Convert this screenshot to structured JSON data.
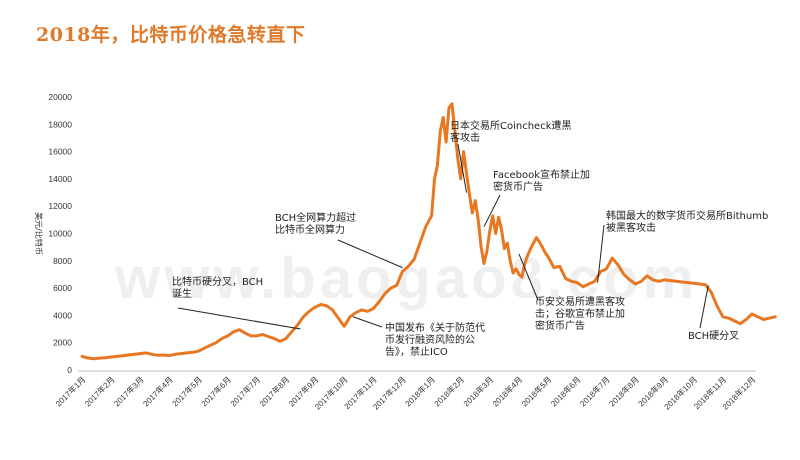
{
  "page": {
    "title": "2018年，比特币价格急转直下"
  },
  "chart_data": {
    "type": "line",
    "title": "2018年，比特币价格急转直下",
    "ylabel": "美元/比特币",
    "xlabel": "",
    "ylim": [
      0,
      20000
    ],
    "yticks": [
      0,
      2000,
      4000,
      6000,
      8000,
      10000,
      12000,
      14000,
      16000,
      18000,
      20000
    ],
    "categories": [
      "2017年1月",
      "2017年2月",
      "2017年3月",
      "2017年4月",
      "2017年5月",
      "2017年6月",
      "2017年7月",
      "2017年8月",
      "2017年9月",
      "2017年10月",
      "2017年11月",
      "2017年12月",
      "2018年1月",
      "2018年2月",
      "2018年3月",
      "2018年4月",
      "2018年5月",
      "2018年6月",
      "2018年7月",
      "2018年8月",
      "2018年9月",
      "2018年10月",
      "2018年11月",
      "2018年12月"
    ],
    "series": [
      {
        "name": "比特币价格",
        "color": "#e87722",
        "points": [
          [
            0.0,
            1000
          ],
          [
            0.2,
            880
          ],
          [
            0.4,
            830
          ],
          [
            0.6,
            870
          ],
          [
            0.8,
            900
          ],
          [
            1.0,
            950
          ],
          [
            1.2,
            1000
          ],
          [
            1.4,
            1050
          ],
          [
            1.6,
            1100
          ],
          [
            1.8,
            1150
          ],
          [
            2.0,
            1200
          ],
          [
            2.2,
            1250
          ],
          [
            2.4,
            1150
          ],
          [
            2.6,
            1080
          ],
          [
            2.8,
            1100
          ],
          [
            3.0,
            1060
          ],
          [
            3.2,
            1150
          ],
          [
            3.4,
            1200
          ],
          [
            3.6,
            1250
          ],
          [
            3.8,
            1300
          ],
          [
            4.0,
            1380
          ],
          [
            4.2,
            1600
          ],
          [
            4.4,
            1800
          ],
          [
            4.6,
            2000
          ],
          [
            4.8,
            2300
          ],
          [
            5.0,
            2500
          ],
          [
            5.2,
            2800
          ],
          [
            5.4,
            2950
          ],
          [
            5.6,
            2700
          ],
          [
            5.8,
            2500
          ],
          [
            6.0,
            2500
          ],
          [
            6.2,
            2600
          ],
          [
            6.4,
            2450
          ],
          [
            6.6,
            2300
          ],
          [
            6.8,
            2100
          ],
          [
            7.0,
            2300
          ],
          [
            7.2,
            2800
          ],
          [
            7.4,
            3300
          ],
          [
            7.6,
            3900
          ],
          [
            7.8,
            4300
          ],
          [
            8.0,
            4600
          ],
          [
            8.2,
            4800
          ],
          [
            8.4,
            4700
          ],
          [
            8.6,
            4400
          ],
          [
            8.8,
            3800
          ],
          [
            9.0,
            3200
          ],
          [
            9.2,
            3900
          ],
          [
            9.4,
            4200
          ],
          [
            9.6,
            4400
          ],
          [
            9.8,
            4300
          ],
          [
            10.0,
            4500
          ],
          [
            10.2,
            5000
          ],
          [
            10.4,
            5600
          ],
          [
            10.6,
            6000
          ],
          [
            10.8,
            6200
          ],
          [
            11.0,
            7200
          ],
          [
            11.2,
            7600
          ],
          [
            11.4,
            8100
          ],
          [
            11.6,
            9300
          ],
          [
            11.8,
            10500
          ],
          [
            12.0,
            11300
          ],
          [
            12.1,
            14000
          ],
          [
            12.2,
            15000
          ],
          [
            12.3,
            17500
          ],
          [
            12.4,
            18500
          ],
          [
            12.5,
            16700
          ],
          [
            12.6,
            19200
          ],
          [
            12.7,
            19500
          ],
          [
            12.8,
            17500
          ],
          [
            12.9,
            15500
          ],
          [
            13.0,
            14000
          ],
          [
            13.1,
            16000
          ],
          [
            13.2,
            14400
          ],
          [
            13.3,
            12900
          ],
          [
            13.4,
            11500
          ],
          [
            13.5,
            12400
          ],
          [
            13.6,
            11000
          ],
          [
            13.7,
            9000
          ],
          [
            13.8,
            7800
          ],
          [
            13.9,
            8700
          ],
          [
            14.0,
            10200
          ],
          [
            14.1,
            11300
          ],
          [
            14.2,
            10000
          ],
          [
            14.3,
            11200
          ],
          [
            14.4,
            10300
          ],
          [
            14.5,
            8900
          ],
          [
            14.6,
            9300
          ],
          [
            14.7,
            8000
          ],
          [
            14.8,
            7100
          ],
          [
            14.9,
            7400
          ],
          [
            15.0,
            7000
          ],
          [
            15.1,
            6800
          ],
          [
            15.2,
            7800
          ],
          [
            15.3,
            8400
          ],
          [
            15.4,
            8900
          ],
          [
            15.5,
            9300
          ],
          [
            15.6,
            9700
          ],
          [
            15.7,
            9400
          ],
          [
            15.8,
            9000
          ],
          [
            15.9,
            8600
          ],
          [
            16.0,
            8300
          ],
          [
            16.1,
            7900
          ],
          [
            16.2,
            7500
          ],
          [
            16.4,
            7600
          ],
          [
            16.6,
            6700
          ],
          [
            16.8,
            6500
          ],
          [
            17.0,
            6400
          ],
          [
            17.2,
            6100
          ],
          [
            17.4,
            6300
          ],
          [
            17.6,
            6500
          ],
          [
            17.8,
            7200
          ],
          [
            18.0,
            7400
          ],
          [
            18.2,
            8200
          ],
          [
            18.4,
            7700
          ],
          [
            18.6,
            7000
          ],
          [
            18.8,
            6600
          ],
          [
            19.0,
            6300
          ],
          [
            19.2,
            6500
          ],
          [
            19.4,
            6900
          ],
          [
            19.6,
            6600
          ],
          [
            19.8,
            6500
          ],
          [
            20.0,
            6600
          ],
          [
            20.2,
            6550
          ],
          [
            20.4,
            6500
          ],
          [
            20.6,
            6450
          ],
          [
            20.8,
            6400
          ],
          [
            21.0,
            6350
          ],
          [
            21.2,
            6300
          ],
          [
            21.4,
            6250
          ],
          [
            21.6,
            5700
          ],
          [
            21.8,
            4700
          ],
          [
            22.0,
            3900
          ],
          [
            22.2,
            3800
          ],
          [
            22.4,
            3600
          ],
          [
            22.6,
            3400
          ],
          [
            22.8,
            3700
          ],
          [
            23.0,
            4100
          ],
          [
            23.2,
            3900
          ],
          [
            23.4,
            3700
          ],
          [
            23.6,
            3800
          ],
          [
            23.8,
            3900
          ]
        ]
      }
    ],
    "annotations": [
      {
        "lines": [
          "比特币硬分叉，BCH",
          "诞生"
        ],
        "target": [
          7.5,
          3000
        ]
      },
      {
        "lines": [
          "BCH全网算力超过",
          "比特币全网算力"
        ],
        "target": [
          11.0,
          7500
        ]
      },
      {
        "lines": [
          "中国发布《关于防范代",
          "币发行融资风险的公",
          "告》，禁止ICO"
        ],
        "target": [
          9.3,
          3900
        ]
      },
      {
        "lines": [
          "日本交易所Coincheck遭黑",
          "客攻击"
        ],
        "target": [
          13.2,
          13000
        ]
      },
      {
        "lines": [
          "Facebook宣布禁止加",
          "密货币广告"
        ],
        "target": [
          13.8,
          10500
        ]
      },
      {
        "lines": [
          "币安交易所遭黑客攻",
          "击；谷歌宣布禁止加",
          "密货币广告"
        ],
        "target": [
          15.0,
          8500
        ]
      },
      {
        "lines": [
          "韩国最大的数字货币交易所Bithumb",
          "被黑客攻击"
        ],
        "target": [
          17.7,
          6400
        ]
      },
      {
        "lines": [
          "BCH硬分叉"
        ],
        "target": [
          21.5,
          6200
        ]
      }
    ]
  },
  "watermark": "www.baogao8.com"
}
